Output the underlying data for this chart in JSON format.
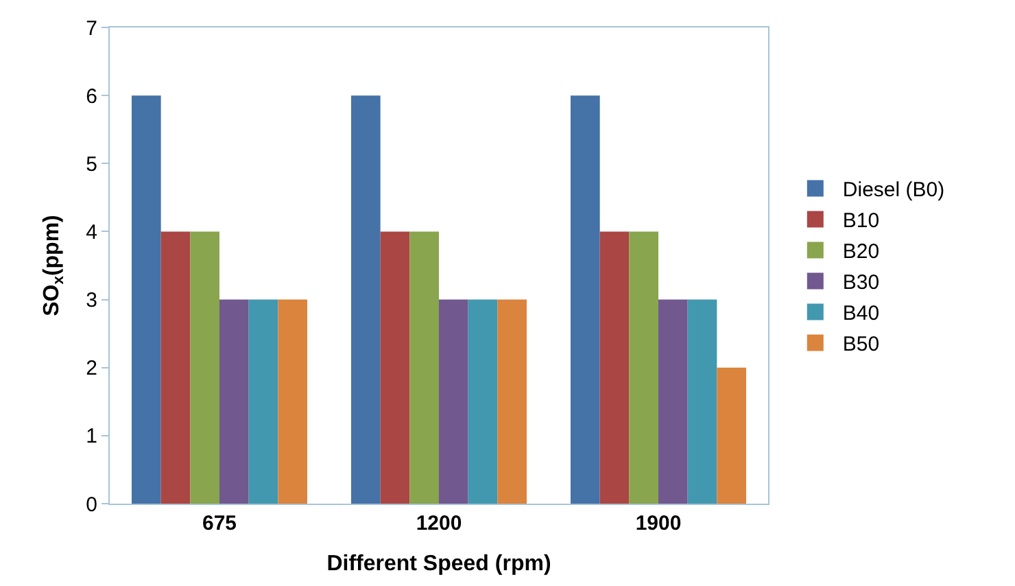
{
  "chart_data": {
    "type": "bar",
    "xlabel": "Different Speed (rpm)",
    "ylabel": "SO$_{x}$(ppm)",
    "categories": [
      "675",
      "1200",
      "1900"
    ],
    "series": [
      {
        "name": "Diesel (B0)",
        "color": "#4572a7",
        "values": [
          6,
          6,
          6
        ]
      },
      {
        "name": "B10",
        "color": "#aa4643",
        "values": [
          4,
          4,
          4
        ]
      },
      {
        "name": "B20",
        "color": "#89a54e",
        "values": [
          4,
          4,
          4
        ]
      },
      {
        "name": "B30",
        "color": "#71588f",
        "values": [
          3,
          3,
          3
        ]
      },
      {
        "name": "B40",
        "color": "#4198af",
        "values": [
          3,
          3,
          3
        ]
      },
      {
        "name": "B50",
        "color": "#db843d",
        "values": [
          3,
          3,
          2
        ]
      }
    ],
    "ylim": [
      0,
      7
    ],
    "yticks": [
      0,
      1,
      2,
      3,
      4,
      5,
      6,
      7
    ],
    "legend": "right"
  }
}
